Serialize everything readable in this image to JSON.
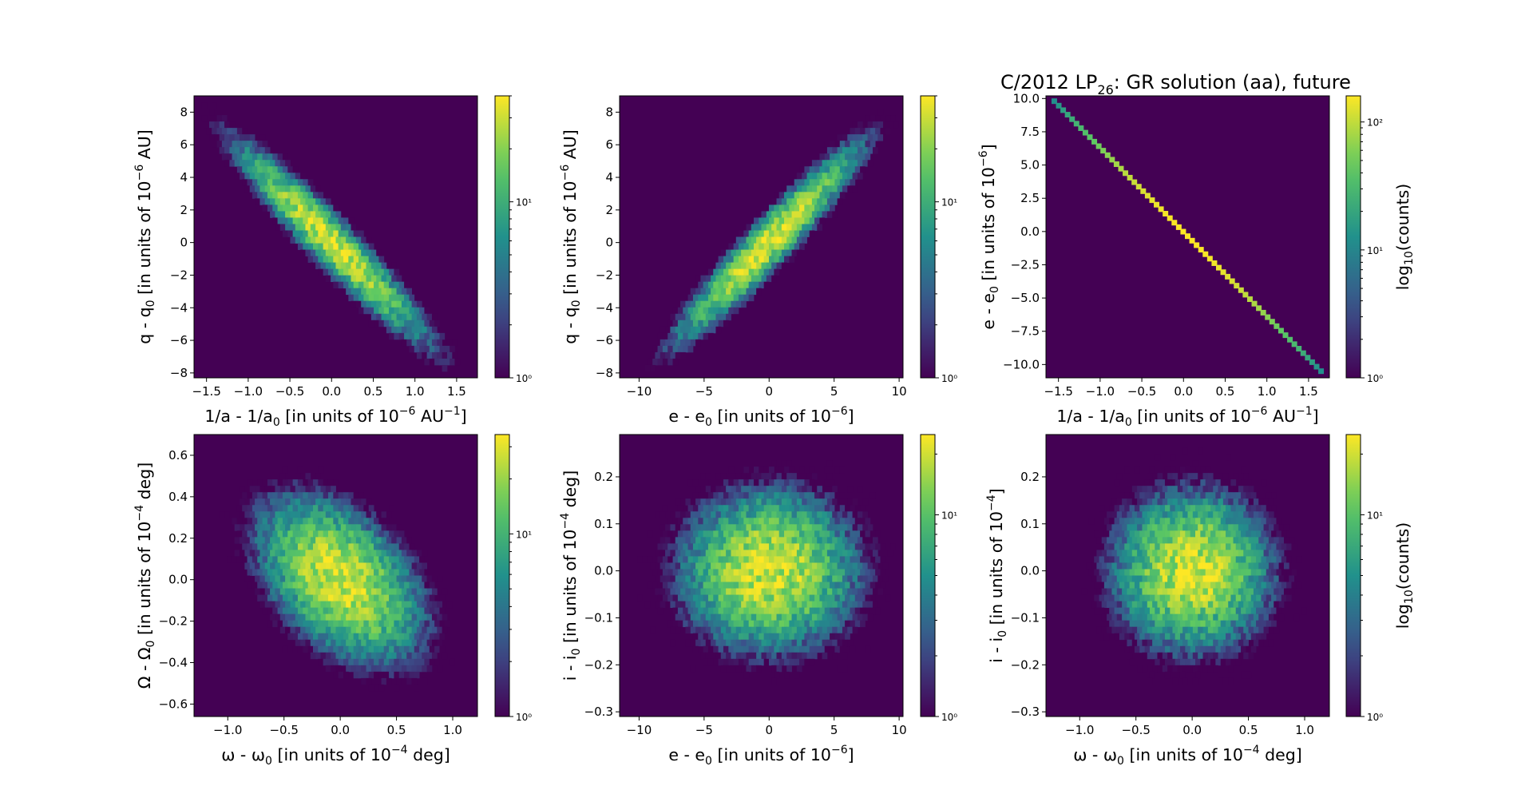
{
  "figure_title": {
    "main": "C/2012 LP",
    "sub": "26",
    "rest": ": GR solution (aa), future"
  },
  "colormap": [
    "#440154",
    "#3b528b",
    "#21918c",
    "#5ec962",
    "#fde725"
  ],
  "chart_data": [
    {
      "type": "heatmap",
      "id": "p1",
      "shape": "hexbin",
      "xlabel": {
        "pre": "1/a - 1/a",
        "sub": "0",
        "mid": " [in units of 10",
        "sup": "−6",
        "mid2": " AU",
        "sup2": "−1",
        "post": "]"
      },
      "ylabel": {
        "pre": "q - q",
        "sub": "0",
        "mid": " [in units of 10",
        "sup": "−6",
        "post": " AU]"
      },
      "xlim": [
        -1.65,
        1.75
      ],
      "ylim": [
        -8.3,
        9.0
      ],
      "xticks": [
        -1.5,
        -1.0,
        -0.5,
        0.0,
        0.5,
        1.0,
        1.5
      ],
      "xtick_labels": [
        "−1.5",
        "−1.0",
        "−0.5",
        "0.0",
        "0.5",
        "1.0",
        "1.5"
      ],
      "yticks": [
        -8,
        -6,
        -4,
        -2,
        0,
        2,
        4,
        6,
        8
      ],
      "ytick_labels": [
        "−8",
        "−6",
        "−4",
        "−2",
        "0",
        "2",
        "4",
        "6",
        "8"
      ],
      "distribution": {
        "sx": 0.55,
        "sy": 2.9,
        "rho": -0.95
      },
      "colorbar": {
        "scale": "log",
        "min": 1,
        "max": 40,
        "ticks": [
          1,
          10
        ],
        "tick_labels": [
          "10⁰",
          "10¹"
        ],
        "label": ""
      }
    },
    {
      "type": "heatmap",
      "id": "p2",
      "shape": "hexbin",
      "xlabel": {
        "pre": "e - e",
        "sub": "0",
        "mid": " [in units of 10",
        "sup": "−6",
        "post": "]"
      },
      "ylabel": {
        "pre": "q - q",
        "sub": "0",
        "mid": " [in units of 10",
        "sup": "−6",
        "post": " AU]"
      },
      "xlim": [
        -11.5,
        10.3
      ],
      "ylim": [
        -8.3,
        9.0
      ],
      "xticks": [
        -10,
        -5,
        0,
        5,
        10
      ],
      "xtick_labels": [
        "−10",
        "−5",
        "0",
        "5",
        "10"
      ],
      "yticks": [
        -8,
        -6,
        -4,
        -2,
        0,
        2,
        4,
        6,
        8
      ],
      "ytick_labels": [
        "−8",
        "−6",
        "−4",
        "−2",
        "0",
        "2",
        "4",
        "6",
        "8"
      ],
      "distribution": {
        "sx": 3.4,
        "sy": 2.9,
        "rho": 0.95
      },
      "colorbar": {
        "scale": "log",
        "min": 1,
        "max": 40,
        "ticks": [
          1,
          10
        ],
        "tick_labels": [
          "10⁰",
          "10¹"
        ],
        "label": ""
      }
    },
    {
      "type": "heatmap",
      "id": "p3",
      "shape": "hexbin-line",
      "xlabel": {
        "pre": "1/a - 1/a",
        "sub": "0",
        "mid": " [in units of 10",
        "sup": "−6",
        "mid2": " AU",
        "sup2": "−1",
        "post": "]"
      },
      "ylabel": {
        "pre": "e - e",
        "sub": "0",
        "mid": " [in units of 10",
        "sup": "−6",
        "post": "]"
      },
      "xlim": [
        -1.65,
        1.75
      ],
      "ylim": [
        -11.0,
        10.2
      ],
      "xticks": [
        -1.5,
        -1.0,
        -0.5,
        0.0,
        0.5,
        1.0,
        1.5
      ],
      "xtick_labels": [
        "−1.5",
        "−1.0",
        "−0.5",
        "0.0",
        "0.5",
        "1.0",
        "1.5"
      ],
      "yticks": [
        -10.0,
        -7.5,
        -5.0,
        -2.5,
        0.0,
        2.5,
        5.0,
        7.5,
        10.0
      ],
      "ytick_labels": [
        "−10.0",
        "−7.5",
        "−5.0",
        "−2.5",
        "0.0",
        "2.5",
        "5.0",
        "7.5",
        "10.0"
      ],
      "line": {
        "x0": -1.55,
        "y0": 9.8,
        "x1": 1.65,
        "y1": -10.5
      },
      "colorbar": {
        "scale": "log",
        "min": 1,
        "max": 160,
        "ticks": [
          1,
          10,
          100
        ],
        "tick_labels": [
          "10⁰",
          "10¹",
          "10²"
        ],
        "label": "log",
        "label_sub": "10",
        "label_post": "(counts)"
      }
    },
    {
      "type": "heatmap",
      "id": "p4",
      "shape": "hexbin",
      "xlabel": {
        "pre": "ω - ω",
        "sub": "0",
        "mid": " [in units of 10",
        "sup": "−4",
        "post": " deg]"
      },
      "ylabel": {
        "pre": "Ω - Ω",
        "sub": "0",
        "mid": " [in units of 10",
        "sup": "−4",
        "post": " deg]"
      },
      "xlim": [
        -1.3,
        1.22
      ],
      "ylim": [
        -0.66,
        0.7
      ],
      "xticks": [
        -1.0,
        -0.5,
        0.0,
        0.5,
        1.0
      ],
      "xtick_labels": [
        "−1.0",
        "−0.5",
        "0.0",
        "0.5",
        "1.0"
      ],
      "yticks": [
        -0.6,
        -0.4,
        -0.2,
        0.0,
        0.2,
        0.4,
        0.6
      ],
      "ytick_labels": [
        "−0.6",
        "−0.4",
        "−0.2",
        "0.0",
        "0.2",
        "0.4",
        "0.6"
      ],
      "distribution": {
        "sx": 0.35,
        "sy": 0.19,
        "rho": -0.45
      },
      "colorbar": {
        "scale": "log",
        "min": 1,
        "max": 35,
        "ticks": [
          1,
          10
        ],
        "tick_labels": [
          "10⁰",
          "10¹"
        ],
        "label": ""
      }
    },
    {
      "type": "heatmap",
      "id": "p5",
      "shape": "hexbin",
      "xlabel": {
        "pre": "e - e",
        "sub": "0",
        "mid": " [in units of 10",
        "sup": "−6",
        "post": "]"
      },
      "ylabel": {
        "pre": "i - i",
        "sub": "0",
        "mid": " [in units of 10",
        "sup": "−4",
        "post": " deg]"
      },
      "xlim": [
        -11.5,
        10.3
      ],
      "ylim": [
        -0.31,
        0.29
      ],
      "xticks": [
        -10,
        -5,
        0,
        5,
        10
      ],
      "xtick_labels": [
        "−10",
        "−5",
        "0",
        "5",
        "10"
      ],
      "yticks": [
        -0.3,
        -0.2,
        -0.1,
        0.0,
        0.1,
        0.2
      ],
      "ytick_labels": [
        "−0.3",
        "−0.2",
        "−0.1",
        "0.0",
        "0.1",
        "0.2"
      ],
      "distribution": {
        "sx": 3.4,
        "sy": 0.085,
        "rho": 0.0
      },
      "colorbar": {
        "scale": "log",
        "min": 1,
        "max": 25,
        "ticks": [
          1,
          10
        ],
        "tick_labels": [
          "10⁰",
          "10¹"
        ],
        "label": ""
      }
    },
    {
      "type": "heatmap",
      "id": "p6",
      "shape": "hexbin",
      "xlabel": {
        "pre": "ω - ω",
        "sub": "0",
        "mid": " [in units of 10",
        "sup": "−4",
        "post": " deg]"
      },
      "ylabel": {
        "pre": "i - i",
        "sub": "0",
        "mid": " [in units of 10",
        "sup": "−4",
        "post": "]"
      },
      "xlim": [
        -1.3,
        1.22
      ],
      "ylim": [
        -0.31,
        0.29
      ],
      "xticks": [
        -1.0,
        -0.5,
        0.0,
        0.5,
        1.0
      ],
      "xtick_labels": [
        "−1.0",
        "−0.5",
        "0.0",
        "0.5",
        "1.0"
      ],
      "yticks": [
        -0.3,
        -0.2,
        -0.1,
        0.0,
        0.1,
        0.2
      ],
      "ytick_labels": [
        "−0.3",
        "−0.2",
        "−0.1",
        "0.0",
        "0.1",
        "0.2"
      ],
      "distribution": {
        "sx": 0.35,
        "sy": 0.085,
        "rho": 0.0
      },
      "colorbar": {
        "scale": "log",
        "min": 1,
        "max": 25,
        "ticks": [
          1,
          10
        ],
        "tick_labels": [
          "10⁰",
          "10¹"
        ],
        "label": "log",
        "label_sub": "10",
        "label_post": "(counts)"
      }
    }
  ]
}
